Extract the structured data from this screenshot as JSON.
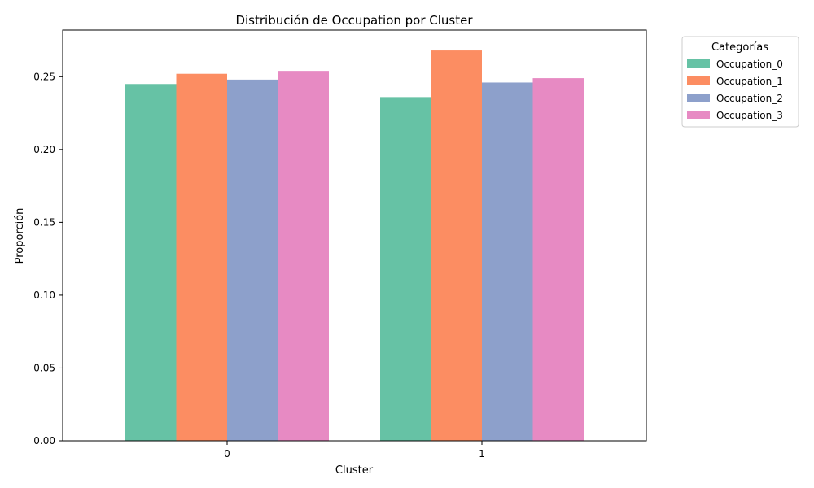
{
  "chart_data": {
    "type": "bar",
    "title": "Distribución de Occupation por Cluster",
    "xlabel": "Cluster",
    "ylabel": "Proporción",
    "categories": [
      "0",
      "1"
    ],
    "ylim": [
      0,
      0.282
    ],
    "yticks": [
      0.0,
      0.05,
      0.1,
      0.15,
      0.2,
      0.25
    ],
    "ytick_labels": [
      "0.00",
      "0.05",
      "0.10",
      "0.15",
      "0.20",
      "0.25"
    ],
    "grid": false,
    "legend": {
      "title": "Categorías",
      "placement": "outside-top-right"
    },
    "series": [
      {
        "name": "Occupation_0",
        "color": "#66c2a5",
        "values": [
          0.245,
          0.236
        ]
      },
      {
        "name": "Occupation_1",
        "color": "#fc8d62",
        "values": [
          0.252,
          0.268
        ]
      },
      {
        "name": "Occupation_2",
        "color": "#8da0cb",
        "values": [
          0.248,
          0.246
        ]
      },
      {
        "name": "Occupation_3",
        "color": "#e78ac3",
        "values": [
          0.254,
          0.249
        ]
      }
    ]
  }
}
